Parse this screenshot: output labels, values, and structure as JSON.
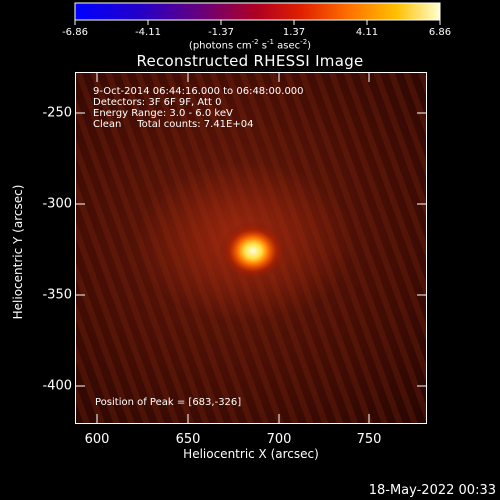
{
  "colorbar": {
    "ticks": [
      "-6.86",
      "-4.11",
      "-1.37",
      "1.37",
      "4.11",
      "6.86"
    ],
    "units": "(photons cm",
    "units_sup1": "-2",
    "units_mid": " s",
    "units_sup2": "-1",
    "units_mid2": " asec",
    "units_sup3": "-2",
    "units_end": ")"
  },
  "plot": {
    "title": "Reconstructed RHESSI Image",
    "info_lines": [
      "9-Oct-2014 06:44:16.000 to 06:48:00.000",
      "Detectors: 3F 6F 9F, Att 0",
      "Energy Range: 3.0 - 6.0 keV",
      "Clean     Total counts: 7.41E+04"
    ],
    "peak_text": "Position of Peak = [683,-326]",
    "xlabel": "Heliocentric X (arcsec)",
    "ylabel": "Heliocentric Y (arcsec)",
    "xticks": [
      "600",
      "650",
      "700",
      "750"
    ],
    "yticks": [
      "-250",
      "-300",
      "-350",
      "-400"
    ],
    "xrange": [
      588,
      782
    ],
    "yrange": [
      -233,
      -420
    ],
    "peak_position": [
      683,
      -326
    ]
  },
  "footer": {
    "date": "18-May-2022 00:33"
  }
}
